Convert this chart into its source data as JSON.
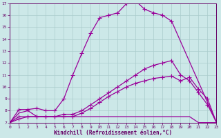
{
  "xlabel": "Windchill (Refroidissement éolien,°C)",
  "ylim": [
    7,
    17
  ],
  "xlim": [
    0,
    23
  ],
  "bg_color": "#cce8e8",
  "line_color": "#990099",
  "series1_x": [
    0,
    1,
    2,
    3,
    4,
    5,
    6,
    7,
    8,
    9,
    10,
    11,
    12,
    13,
    14,
    15,
    16,
    17,
    18,
    23
  ],
  "series1_y": [
    7.0,
    8.1,
    8.1,
    8.2,
    8.0,
    8.0,
    9.0,
    11.0,
    12.8,
    14.5,
    15.8,
    16.0,
    16.2,
    17.0,
    17.2,
    16.5,
    16.2,
    16.0,
    15.5,
    7.0
  ],
  "series2_x": [
    0,
    1,
    2,
    3,
    4,
    5,
    6,
    7,
    8,
    9,
    10,
    11,
    12,
    13,
    14,
    15,
    16,
    17,
    18,
    19,
    20,
    21,
    22,
    23
  ],
  "series2_y": [
    7.0,
    7.5,
    7.5,
    7.5,
    7.5,
    7.5,
    7.7,
    7.7,
    8.0,
    8.5,
    9.0,
    9.5,
    10.0,
    10.5,
    11.0,
    11.5,
    11.8,
    12.0,
    12.2,
    11.0,
    10.5,
    9.5,
    8.5,
    7.0
  ],
  "series3_x": [
    0,
    1,
    2,
    3,
    4,
    5,
    6,
    7,
    8,
    9,
    10,
    11,
    12,
    13,
    14,
    15,
    16,
    17,
    18,
    19,
    20,
    21,
    22,
    23
  ],
  "series3_y": [
    7.0,
    7.3,
    7.5,
    7.5,
    7.5,
    7.5,
    7.5,
    7.5,
    7.8,
    8.2,
    8.7,
    9.2,
    9.6,
    10.0,
    10.3,
    10.5,
    10.7,
    10.8,
    10.9,
    10.5,
    10.8,
    9.8,
    9.0,
    7.0
  ],
  "series4_x": [
    0,
    1,
    2,
    3,
    4,
    5,
    6,
    7,
    8,
    9,
    10,
    11,
    12,
    13,
    14,
    15,
    16,
    17,
    18,
    19,
    20,
    21,
    22,
    23
  ],
  "series4_y": [
    7.0,
    7.8,
    8.0,
    7.5,
    7.5,
    7.5,
    7.5,
    7.5,
    7.5,
    7.5,
    7.5,
    7.5,
    7.5,
    7.5,
    7.5,
    7.5,
    7.5,
    7.5,
    7.5,
    7.5,
    7.5,
    7.0,
    7.0,
    7.0
  ],
  "marker": "+",
  "marker_size": 4,
  "linewidth": 0.9,
  "font_color": "#660066",
  "tick_color": "#660066",
  "grid_color": "#aacccc"
}
